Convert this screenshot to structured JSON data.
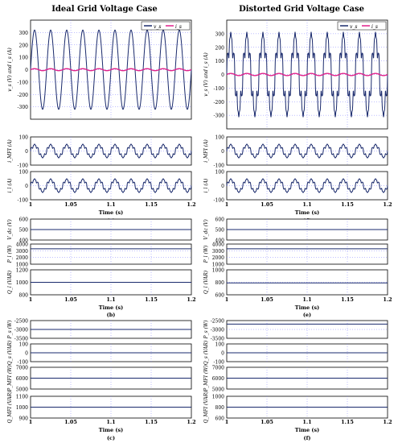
{
  "colors": {
    "voltage": "#1a2a6c",
    "current": "#e0218a",
    "trace": "#1a2a6c",
    "grid": "#7f7fff",
    "bg": "#ffffff",
    "axis": "#000000"
  },
  "figure": {
    "col_titles": [
      "Ideal Grid Voltage Case",
      "Distorted Grid Voltage Case"
    ],
    "legend_labels": [
      "v_s",
      "i_s"
    ]
  },
  "chart_data": [
    {
      "id": "a",
      "type": "line",
      "xlabel": "Time (s)",
      "caption": "(a)",
      "xlim": [
        1,
        1.2
      ],
      "xticks": [
        "1",
        "1.05",
        "1.1",
        "1.15",
        "1.2"
      ],
      "panels": [
        {
          "ylabel": "v_s (V) and i_s (A)",
          "ylim": [
            -400,
            400
          ],
          "yticks": [
            "-300",
            "-200",
            "-100",
            "0",
            "100",
            "200",
            "300"
          ],
          "series": [
            {
              "name": "v_s",
              "waveform": "sine",
              "amplitude": 320,
              "freq_hz": 50
            },
            {
              "name": "i_s",
              "waveform": "sine",
              "amplitude": 8,
              "freq_hz": 50
            }
          ]
        },
        {
          "ylabel": "i_MFI (A)",
          "ylim": [
            -100,
            100
          ],
          "yticks": [
            "-100",
            "0",
            "100"
          ],
          "series": [
            {
              "waveform": "distorted",
              "amplitude": 50,
              "freq_hz": 50
            }
          ]
        },
        {
          "ylabel": "i_l (A)",
          "ylim": [
            -100,
            100
          ],
          "yticks": [
            "-100",
            "0",
            "100"
          ],
          "series": [
            {
              "waveform": "distorted",
              "amplitude": 50,
              "freq_hz": 50
            }
          ]
        }
      ]
    },
    {
      "id": "d",
      "type": "line",
      "xlabel": "Time (s)",
      "caption": "(d)",
      "xlim": [
        1,
        1.2
      ],
      "xticks": [
        "1",
        "1.05",
        "1.1",
        "1.15",
        "1.2"
      ],
      "panels": [
        {
          "ylabel": "v_s (V) and i_s (A)",
          "ylim": [
            -400,
            400
          ],
          "yticks": [
            "-300",
            "-200",
            "-100",
            "0",
            "100",
            "200",
            "300"
          ],
          "series": [
            {
              "name": "v_s",
              "waveform": "distorted",
              "amplitude": 320,
              "freq_hz": 50
            },
            {
              "name": "i_s",
              "waveform": "sine",
              "amplitude": 8,
              "freq_hz": 50
            }
          ]
        },
        {
          "ylabel": "i_MFI (A)",
          "ylim": [
            -100,
            100
          ],
          "yticks": [
            "-100",
            "0",
            "100"
          ],
          "series": [
            {
              "waveform": "distorted",
              "amplitude": 50,
              "freq_hz": 50
            }
          ]
        },
        {
          "ylabel": "i_l (A)",
          "ylim": [
            -100,
            100
          ],
          "yticks": [
            "-100",
            "0",
            "100"
          ],
          "series": [
            {
              "waveform": "distorted",
              "amplitude": 50,
              "freq_hz": 50
            }
          ]
        }
      ]
    },
    {
      "id": "b",
      "type": "line",
      "xlabel": "Time (s)",
      "caption": "(b)",
      "xlim": [
        1,
        1.2
      ],
      "xticks": [
        "1",
        "1.05",
        "1.1",
        "1.15",
        "1.2"
      ],
      "panels": [
        {
          "ylabel": "V_dc (V)",
          "ylim": [
            400,
            600
          ],
          "yticks": [
            "400",
            "500",
            "600"
          ],
          "series": [
            {
              "waveform": "const",
              "value": 500
            }
          ]
        },
        {
          "ylabel": "P_l (W)",
          "ylim": [
            1000,
            4000
          ],
          "yticks": [
            "1000",
            "2000",
            "3000",
            "4000"
          ],
          "series": [
            {
              "waveform": "const",
              "value": 3300
            }
          ]
        },
        {
          "ylabel": "Q_l (VAR)",
          "ylim": [
            800,
            1200
          ],
          "yticks": [
            "800",
            "1000",
            "1200"
          ],
          "series": [
            {
              "waveform": "const",
              "value": 1000
            }
          ]
        }
      ]
    },
    {
      "id": "e",
      "type": "line",
      "xlabel": "Time (s)",
      "caption": "(e)",
      "xlim": [
        1,
        1.2
      ],
      "xticks": [
        "1",
        "1.05",
        "1.1",
        "1.15",
        "1.2"
      ],
      "panels": [
        {
          "ylabel": "V_dc (V)",
          "ylim": [
            400,
            600
          ],
          "yticks": [
            "400",
            "500",
            "600"
          ],
          "series": [
            {
              "waveform": "const",
              "value": 500
            }
          ]
        },
        {
          "ylabel": "P_l (W)",
          "ylim": [
            1000,
            4000
          ],
          "yticks": [
            "1000",
            "2000",
            "3000",
            "4000"
          ],
          "series": [
            {
              "waveform": "const",
              "value": 3300
            }
          ]
        },
        {
          "ylabel": "Q_l (VAR)",
          "ylim": [
            600,
            1000
          ],
          "yticks": [
            "600",
            "800",
            "1000"
          ],
          "series": [
            {
              "waveform": "const",
              "value": 790
            }
          ]
        }
      ]
    },
    {
      "id": "c",
      "type": "line",
      "xlabel": "Time (s)",
      "caption": "(c)",
      "xlim": [
        1,
        1.2
      ],
      "xticks": [
        "1",
        "1.05",
        "1.1",
        "1.15",
        "1.2"
      ],
      "panels": [
        {
          "ylabel": "P_s (W)",
          "ylim": [
            -3500,
            -2500
          ],
          "yticks": [
            "-3500",
            "-3000",
            "-2500"
          ],
          "series": [
            {
              "waveform": "const",
              "value": -3000
            }
          ]
        },
        {
          "ylabel": "Q_s (VAR)",
          "ylim": [
            -100,
            100
          ],
          "yticks": [
            "-100",
            "0",
            "100"
          ],
          "series": [
            {
              "waveform": "const",
              "value": 0
            }
          ]
        },
        {
          "ylabel": "P_MFI (W)",
          "ylim": [
            5000,
            7000
          ],
          "yticks": [
            "5000",
            "6000",
            "7000"
          ],
          "series": [
            {
              "waveform": "const",
              "value": 6000
            }
          ]
        },
        {
          "ylabel": "Q_MFI (VAR)",
          "ylim": [
            900,
            1100
          ],
          "yticks": [
            "900",
            "1000",
            "1100"
          ],
          "series": [
            {
              "waveform": "const",
              "value": 1000
            }
          ]
        }
      ]
    },
    {
      "id": "f",
      "type": "line",
      "xlabel": "Time (s)",
      "caption": "(f)",
      "xlim": [
        1,
        1.2
      ],
      "xticks": [
        "1",
        "1.05",
        "1.1",
        "1.15",
        "1.2"
      ],
      "panels": [
        {
          "ylabel": "P_s (W)",
          "ylim": [
            -3500,
            -2500
          ],
          "yticks": [
            "-3500",
            "-3000",
            "-2500"
          ],
          "series": [
            {
              "waveform": "const",
              "value": -2700
            }
          ]
        },
        {
          "ylabel": "Q_s (VAR)",
          "ylim": [
            -100,
            100
          ],
          "yticks": [
            "-100",
            "0",
            "100"
          ],
          "series": [
            {
              "waveform": "const",
              "value": 0
            }
          ]
        },
        {
          "ylabel": "P_MFI (W)",
          "ylim": [
            5000,
            7000
          ],
          "yticks": [
            "5000",
            "6000",
            "7000"
          ],
          "series": [
            {
              "waveform": "const",
              "value": 6000
            }
          ]
        },
        {
          "ylabel": "Q_MFI (VAR)",
          "ylim": [
            600,
            1000
          ],
          "yticks": [
            "600",
            "800",
            "1000"
          ],
          "series": [
            {
              "waveform": "const",
              "value": 800
            }
          ]
        }
      ]
    }
  ]
}
